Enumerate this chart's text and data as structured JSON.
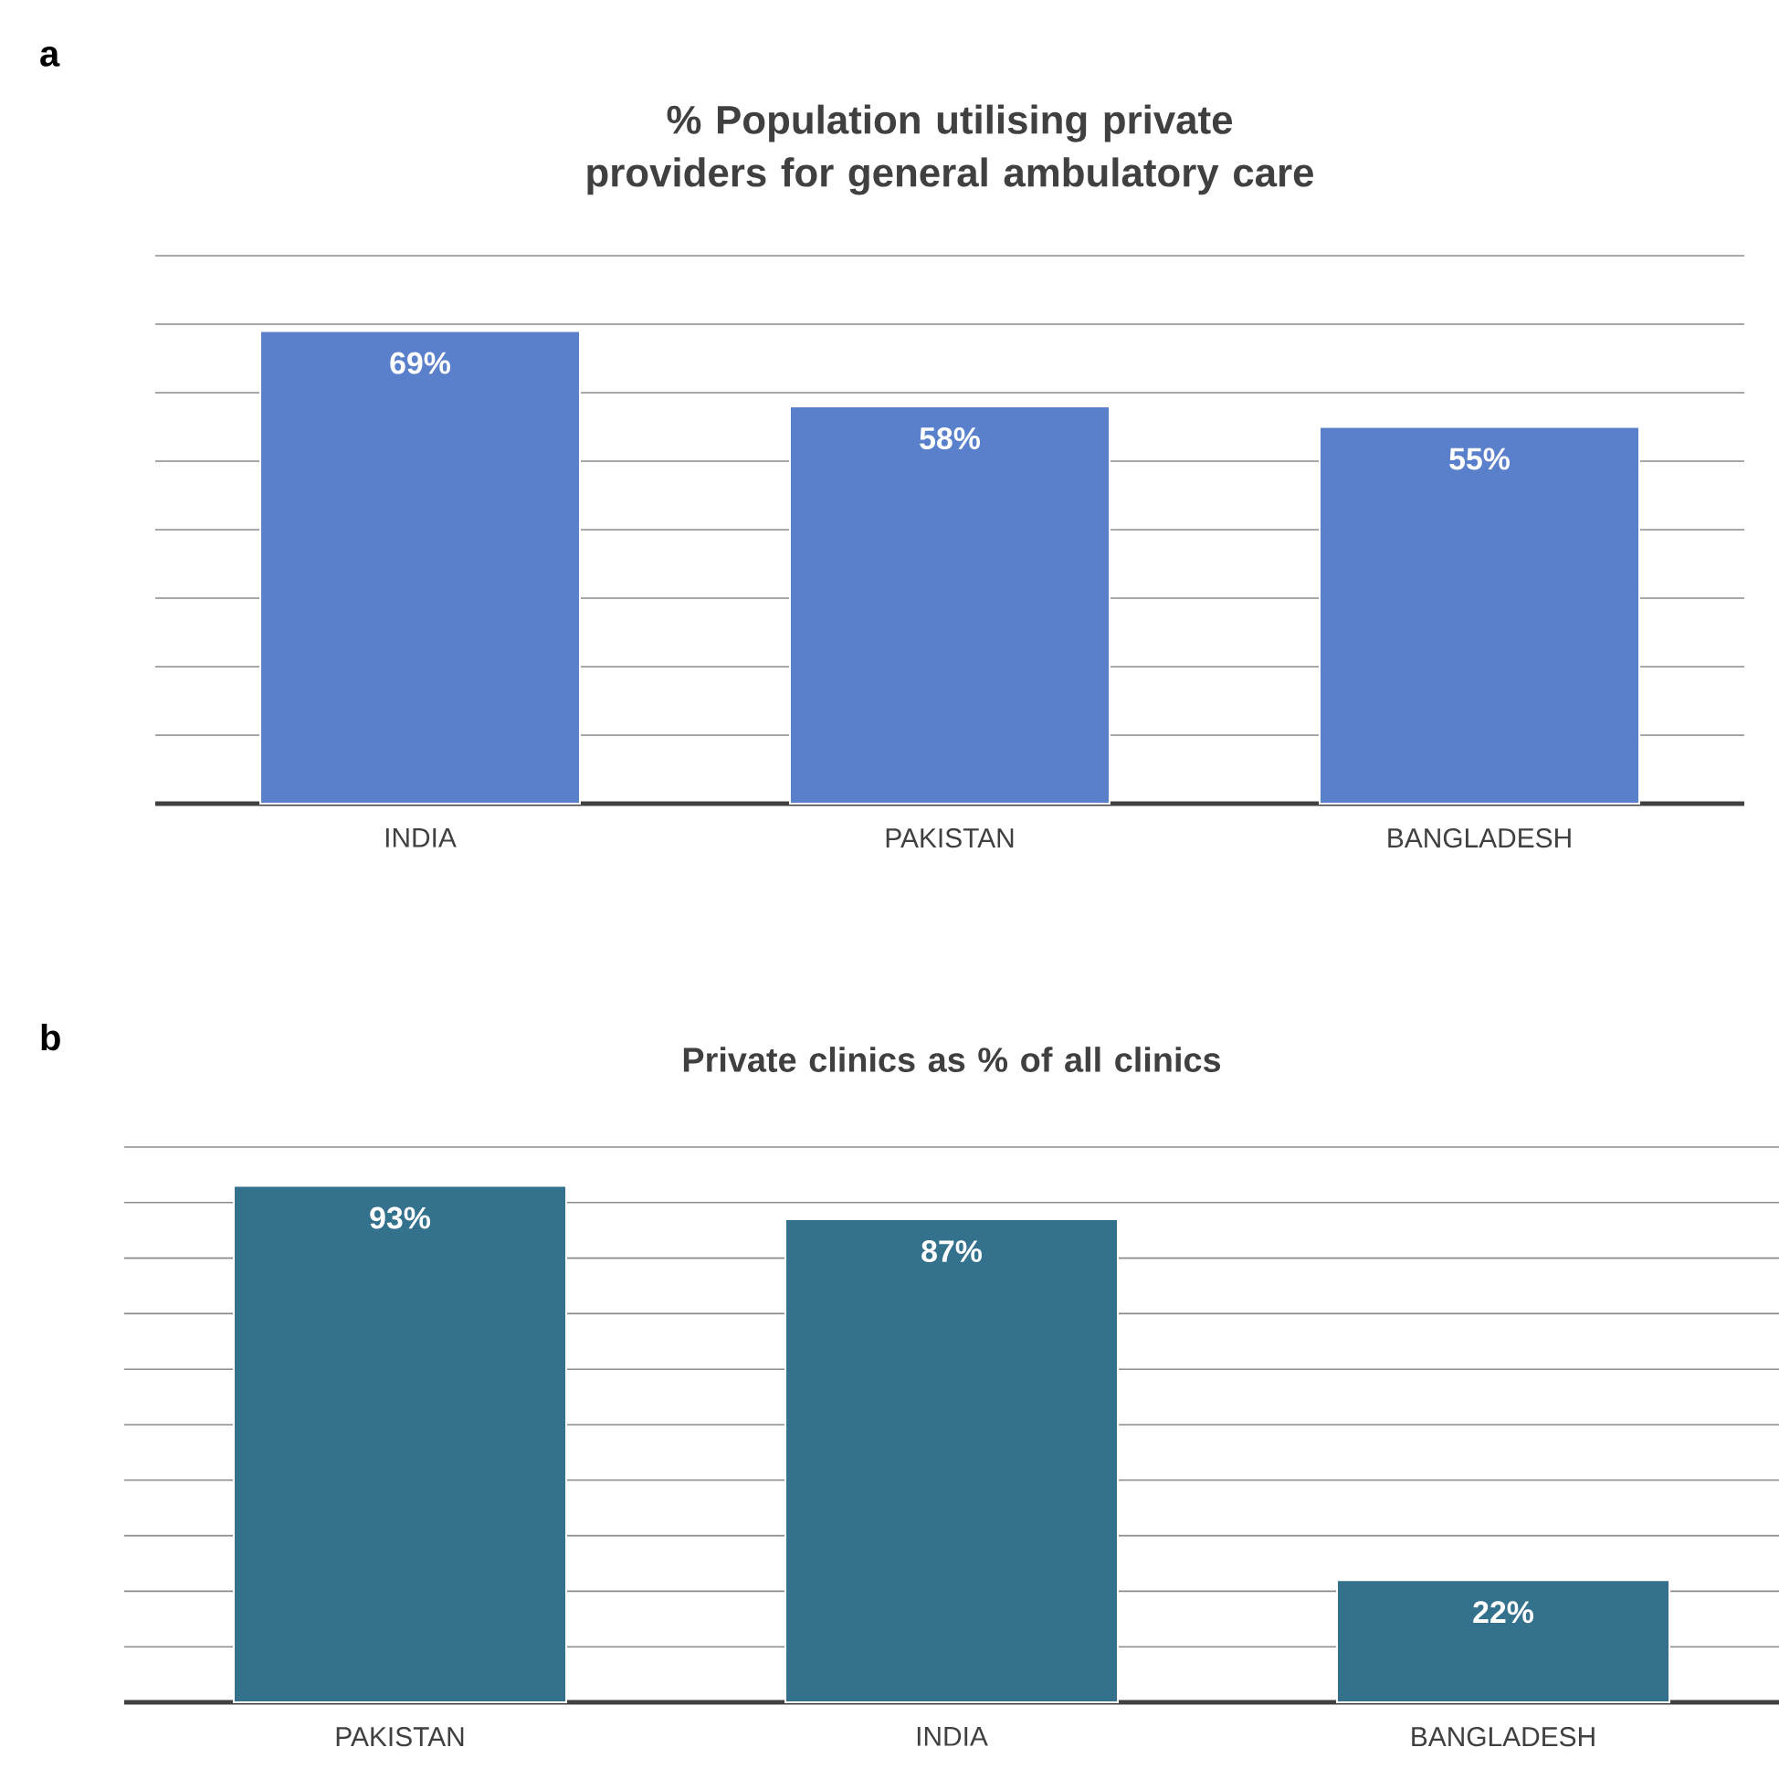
{
  "chart_data": [
    {
      "type": "bar",
      "title": "% Population utilising private providers for general ambulatory care",
      "annotations": [
        "a"
      ],
      "categories": [
        "INDIA",
        "PAKISTAN",
        "BANGLADESH"
      ],
      "values": [
        69,
        58,
        55
      ],
      "value_labels": [
        "69%",
        "58%",
        "55%"
      ],
      "color": "#5a80cb",
      "ylim": [
        0,
        80
      ],
      "yticks": [
        {
          "value": 0,
          "label": null
        },
        {
          "value": 10,
          "label": null
        },
        {
          "value": 20,
          "label": null
        },
        {
          "value": 30,
          "label": null
        },
        {
          "value": 40,
          "label": null
        },
        {
          "value": 50,
          "label": null
        },
        {
          "value": 60,
          "label": null
        },
        {
          "value": 70,
          "label": null
        },
        {
          "value": 80,
          "label": null
        }
      ],
      "grid": "y",
      "tick_labels": "x"
    },
    {
      "type": "bar",
      "title": "Private clinics as % of all clinics",
      "annotations": [
        "b"
      ],
      "categories": [
        "PAKISTAN",
        "INDIA",
        "BANGLADESH"
      ],
      "values": [
        93,
        87,
        22
      ],
      "value_labels": [
        "93%",
        "87%",
        "22%"
      ],
      "color": "#33718c",
      "ylim": [
        0,
        100
      ],
      "yticks": [
        {
          "value": 0,
          "label": null
        },
        {
          "value": 10,
          "label": null
        },
        {
          "value": 20,
          "label": null
        },
        {
          "value": 30,
          "label": null
        },
        {
          "value": 40,
          "label": null
        },
        {
          "value": 50,
          "label": null
        },
        {
          "value": 60,
          "label": null
        },
        {
          "value": 70,
          "label": null
        },
        {
          "value": 80,
          "label": null
        },
        {
          "value": 90,
          "label": null
        },
        {
          "value": 100,
          "label": null
        }
      ],
      "grid": "y",
      "tick_labels": "x"
    }
  ]
}
